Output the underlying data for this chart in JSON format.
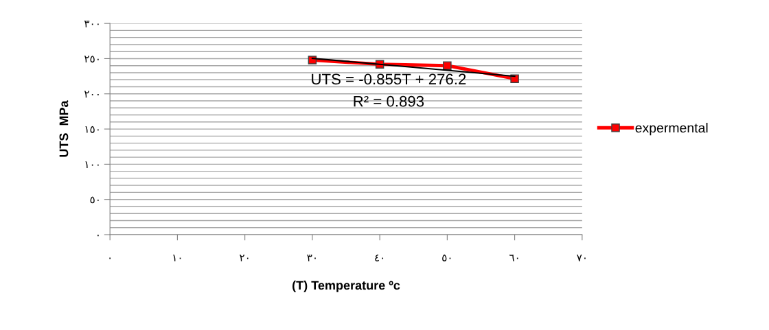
{
  "chart_data": {
    "type": "line",
    "xlabel": "(T) Temperature ºc",
    "ylabel": "UTS  MPa",
    "xlim": [
      0,
      70
    ],
    "xticks": [
      {
        "value": 0,
        "label": "٠"
      },
      {
        "value": 10,
        "label": "١٠"
      },
      {
        "value": 20,
        "label": "٢٠"
      },
      {
        "value": 30,
        "label": "٣٠"
      },
      {
        "value": 40,
        "label": "٤٠"
      },
      {
        "value": 50,
        "label": "٥٠"
      },
      {
        "value": 60,
        "label": "٦٠"
      },
      {
        "value": 70,
        "label": "٧٠"
      }
    ],
    "ylim": [
      0,
      300
    ],
    "yticks": [
      {
        "value": 0,
        "label": "٠"
      },
      {
        "value": 10,
        "label": null
      },
      {
        "value": 20,
        "label": null
      },
      {
        "value": 30,
        "label": null
      },
      {
        "value": 40,
        "label": null
      },
      {
        "value": 50,
        "label": "٥٠"
      },
      {
        "value": 60,
        "label": null
      },
      {
        "value": 70,
        "label": null
      },
      {
        "value": 80,
        "label": null
      },
      {
        "value": 90,
        "label": null
      },
      {
        "value": 100,
        "label": "١٠٠"
      },
      {
        "value": 110,
        "label": null
      },
      {
        "value": 120,
        "label": null
      },
      {
        "value": 130,
        "label": null
      },
      {
        "value": 140,
        "label": null
      },
      {
        "value": 150,
        "label": "١٥٠"
      },
      {
        "value": 160,
        "label": null
      },
      {
        "value": 170,
        "label": null
      },
      {
        "value": 180,
        "label": null
      },
      {
        "value": 190,
        "label": null
      },
      {
        "value": 200,
        "label": "٢٠٠"
      },
      {
        "value": 210,
        "label": null
      },
      {
        "value": 220,
        "label": null
      },
      {
        "value": 230,
        "label": null
      },
      {
        "value": 240,
        "label": null
      },
      {
        "value": 250,
        "label": "٢٥٠"
      },
      {
        "value": 260,
        "label": null
      },
      {
        "value": 270,
        "label": null
      },
      {
        "value": 280,
        "label": null
      },
      {
        "value": 290,
        "label": null
      },
      {
        "value": 300,
        "label": "٣٠٠"
      }
    ],
    "grid": "y",
    "legend": "right",
    "series": [
      {
        "name": "expermental",
        "color": "#ff0000",
        "x": [
          30,
          40,
          50,
          60
        ],
        "values": [
          248,
          242,
          240,
          221.5
        ],
        "marker": "square"
      },
      {
        "type": "line",
        "color": "#000000",
        "x": [
          30,
          60
        ],
        "values": [
          250.5,
          224.9
        ],
        "marker": "none"
      }
    ],
    "annotations": [
      "UTS = -0.855T + 276.2",
      "R² = 0.893"
    ]
  }
}
